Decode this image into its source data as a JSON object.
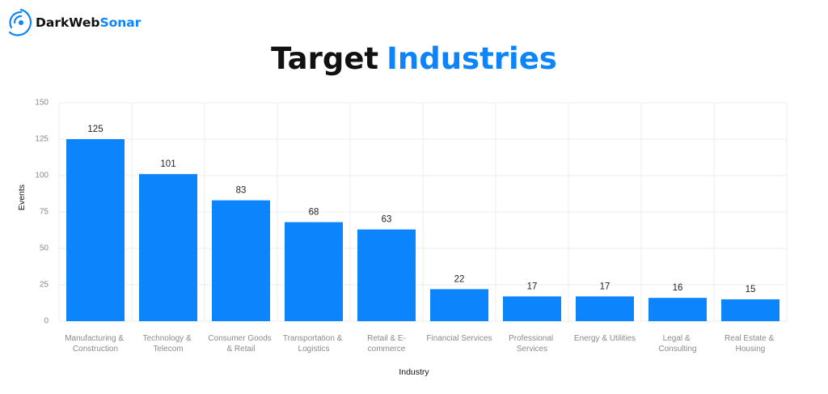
{
  "brand": {
    "lead": "DarkWeb",
    "highlight": "Sonar"
  },
  "chart_data": {
    "type": "bar",
    "title_lead": "Target",
    "title_highlight": "Industries",
    "x_label": "Industry",
    "y_label": "Events",
    "categories": [
      "Manufacturing & Construction",
      "Technology & Telecom",
      "Consumer Goods & Retail",
      "Transportation & Logistics",
      "Retail & E-commerce",
      "Financial Services",
      "Professional Services",
      "Energy & Utilities",
      "Legal & Consulting",
      "Real Estate & Housing"
    ],
    "values": [
      125,
      101,
      83,
      68,
      63,
      22,
      17,
      17,
      16,
      15
    ],
    "color": "#0b84fc",
    "ylim": [
      0,
      150
    ],
    "yticks": [
      0,
      25,
      50,
      75,
      100,
      125,
      150
    ],
    "grid": true
  }
}
